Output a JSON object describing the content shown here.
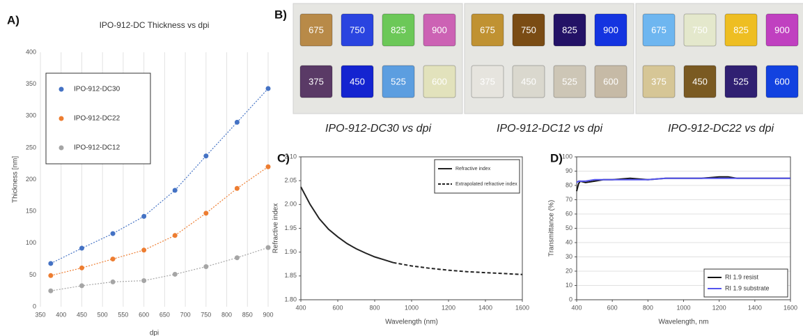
{
  "chart_data": [
    {
      "type": "scatter",
      "panel": "A)",
      "title": "IPO-912-DC Thickness vs dpi",
      "x_label": "dpi",
      "y_label": "Thickness [nm]",
      "x": [
        375,
        450,
        525,
        600,
        675,
        750,
        825,
        900
      ],
      "series": [
        {
          "name": "IPO-912-DC30",
          "color": "#4472c4",
          "values": [
            68,
            92,
            115,
            142,
            183,
            237,
            290,
            343
          ]
        },
        {
          "name": "IPO-912-DC22",
          "color": "#ed7d31",
          "values": [
            49,
            61,
            75,
            89,
            112,
            147,
            186,
            220
          ]
        },
        {
          "name": "IPO-912-DC12",
          "color": "#a5a5a5",
          "values": [
            25,
            33,
            39,
            41,
            51,
            63,
            77,
            93
          ]
        }
      ],
      "xlim": [
        350,
        900
      ],
      "xticks": [
        350,
        400,
        450,
        500,
        550,
        600,
        650,
        700,
        750,
        800,
        850,
        900
      ],
      "ylim": [
        0,
        400
      ],
      "yticks": [
        0,
        50,
        100,
        150,
        200,
        250,
        300,
        350,
        400
      ],
      "grid": "x",
      "frame": false,
      "legend": "upper left",
      "trendline": true
    },
    {
      "type": "line",
      "panel": "C)",
      "x_label": "Wavelength (nm)",
      "y_label": "Refractive index",
      "series": [
        {
          "name": "Refractive index",
          "color": "#222222",
          "dash": false,
          "x": [
            400,
            450,
            500,
            550,
            600,
            650,
            700,
            750,
            800,
            850,
            900
          ],
          "values": [
            2.037,
            2.0,
            1.97,
            1.948,
            1.932,
            1.918,
            1.907,
            1.898,
            1.89,
            1.884,
            1.878
          ]
        },
        {
          "name": "Extrapolated refractive index",
          "color": "#222222",
          "dash": true,
          "x": [
            900,
            1000,
            1100,
            1200,
            1300,
            1400,
            1500,
            1600
          ],
          "values": [
            1.878,
            1.871,
            1.866,
            1.862,
            1.859,
            1.857,
            1.855,
            1.853
          ]
        }
      ],
      "xlim": [
        400,
        1600
      ],
      "xticks": [
        400,
        600,
        800,
        1000,
        1200,
        1400,
        1600
      ],
      "ylim": [
        1.8,
        2.1
      ],
      "yticks": [
        {
          "value": 1.8,
          "label": "1.80"
        },
        1.85,
        {
          "value": 1.9,
          "label": "1.90"
        },
        1.95,
        {
          "value": 2,
          "label": "2.00"
        },
        2.05,
        {
          "value": 2.1,
          "label": "2.10"
        }
      ],
      "grid": "none",
      "frame": true,
      "legend": "upper right"
    },
    {
      "type": "line",
      "panel": "D)",
      "x_label": "Wavelength, nm",
      "y_label": "Transmittance (%)",
      "series": [
        {
          "name": "RI 1.9 resist",
          "color": "#111111",
          "dash": false,
          "x": [
            400,
            410,
            420,
            450,
            500,
            550,
            600,
            700,
            800,
            900,
            1000,
            1100,
            1200,
            1250,
            1300,
            1400,
            1500,
            1600
          ],
          "values": [
            76,
            81,
            83,
            82,
            83,
            84,
            84,
            85,
            84,
            85,
            85,
            85,
            86,
            86,
            85,
            85,
            85,
            85
          ]
        },
        {
          "name": "RI 1.9 substrate",
          "color": "#5555ee",
          "dash": false,
          "x": [
            400,
            410,
            420,
            450,
            500,
            550,
            600,
            700,
            800,
            900,
            1000,
            1100,
            1200,
            1250,
            1300,
            1400,
            1500,
            1600
          ],
          "values": [
            82,
            83,
            83,
            83,
            84,
            84,
            84,
            84,
            84,
            85,
            85,
            85,
            85,
            85,
            85,
            85,
            85,
            85
          ]
        }
      ],
      "xlim": [
        400,
        1600
      ],
      "xticks": [
        400,
        600,
        800,
        1000,
        1200,
        1400,
        1600
      ],
      "ylim": [
        0,
        100
      ],
      "yticks": [
        0,
        10,
        20,
        30,
        40,
        50,
        60,
        70,
        80,
        90,
        100
      ],
      "grid": "y",
      "frame": true,
      "legend": "lower right"
    }
  ],
  "photos": {
    "panel": "B)",
    "groups": [
      {
        "caption": "IPO-912-DC30 vs dpi",
        "tiles": [
          {
            "label": "675",
            "color": "#b88a48"
          },
          {
            "label": "750",
            "color": "#2a44e0"
          },
          {
            "label": "825",
            "color": "#6cc858"
          },
          {
            "label": "900",
            "color": "#cc62b4"
          },
          {
            "label": "375",
            "color": "#5a3a66"
          },
          {
            "label": "450",
            "color": "#1424d0"
          },
          {
            "label": "525",
            "color": "#5c9ee0"
          },
          {
            "label": "600",
            "color": "#e2e2bc"
          }
        ]
      },
      {
        "caption": "IPO-912-DC12 vs dpi",
        "tiles": [
          {
            "label": "675",
            "color": "#c09232"
          },
          {
            "label": "750",
            "color": "#7a4c14"
          },
          {
            "label": "825",
            "color": "#231266"
          },
          {
            "label": "900",
            "color": "#1434e0"
          },
          {
            "label": "375",
            "color": "#e6e4de"
          },
          {
            "label": "450",
            "color": "#dad8ce"
          },
          {
            "label": "525",
            "color": "#cdc6b6"
          },
          {
            "label": "600",
            "color": "#c6baa6"
          }
        ]
      },
      {
        "caption": "IPO-912-DC22 vs dpi",
        "tiles": [
          {
            "label": "675",
            "color": "#6eb6f0"
          },
          {
            "label": "750",
            "color": "#e4e8cc"
          },
          {
            "label": "825",
            "color": "#eebe22"
          },
          {
            "label": "900",
            "color": "#c040c0"
          },
          {
            "label": "375",
            "color": "#d6c696"
          },
          {
            "label": "450",
            "color": "#7a5a22"
          },
          {
            "label": "525",
            "color": "#302072"
          },
          {
            "label": "600",
            "color": "#1242e0"
          }
        ]
      }
    ]
  }
}
